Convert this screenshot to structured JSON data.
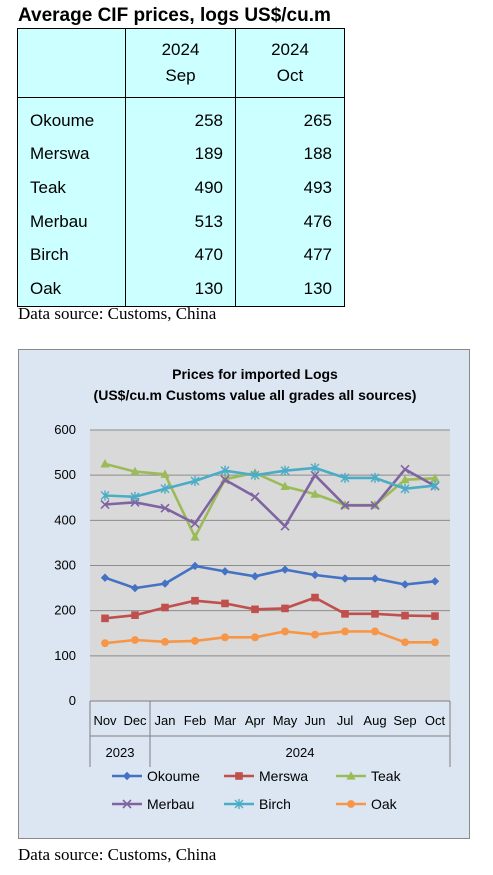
{
  "page_title": "Average CIF prices, logs US$/cu.m",
  "table": {
    "header": [
      {
        "year": "2024",
        "month": "Sep"
      },
      {
        "year": "2024",
        "month": "Oct"
      }
    ],
    "rows": [
      {
        "name": "Okoume",
        "sep": "258",
        "oct": "265"
      },
      {
        "name": "Merswa",
        "sep": "189",
        "oct": "188"
      },
      {
        "name": "Teak",
        "sep": "490",
        "oct": "493"
      },
      {
        "name": "Merbau",
        "sep": "513",
        "oct": "476"
      },
      {
        "name": "Birch",
        "sep": "470",
        "oct": "477"
      },
      {
        "name": "Oak",
        "sep": "130",
        "oct": "130"
      }
    ]
  },
  "source_top": "Data source: Customs, China",
  "source_bottom": "Data source: Customs, China",
  "chart_data": {
    "type": "line",
    "title": "Prices for imported Logs",
    "subtitle": "(US$/cu.m Customs value all grades all sources)",
    "categories": [
      "Nov",
      "Dec",
      "Jan",
      "Feb",
      "Mar",
      "Apr",
      "May",
      "Jun",
      "Jul",
      "Aug",
      "Sep",
      "Oct"
    ],
    "year_groups": [
      {
        "label": "2023",
        "count": 2
      },
      {
        "label": "2024",
        "count": 10
      }
    ],
    "ylim": [
      0,
      600
    ],
    "yticks": [
      0,
      100,
      200,
      300,
      400,
      500,
      600
    ],
    "grid": true,
    "legend_position": "bottom",
    "series": [
      {
        "name": "Okoume",
        "color": "#4472c4",
        "marker": "diamond",
        "values": [
          273,
          250,
          260,
          299,
          287,
          276,
          291,
          279,
          271,
          271,
          258,
          265
        ]
      },
      {
        "name": "Merswa",
        "color": "#c0504d",
        "marker": "square",
        "values": [
          183,
          190,
          207,
          222,
          216,
          203,
          205,
          229,
          193,
          193,
          189,
          188
        ]
      },
      {
        "name": "Teak",
        "color": "#9bbb59",
        "marker": "triangle",
        "values": [
          525,
          508,
          502,
          363,
          491,
          505,
          475,
          458,
          434,
          434,
          490,
          493
        ]
      },
      {
        "name": "Merbau",
        "color": "#8064a2",
        "marker": "x",
        "values": [
          435,
          440,
          427,
          393,
          490,
          452,
          387,
          500,
          433,
          433,
          513,
          476
        ]
      },
      {
        "name": "Birch",
        "color": "#4bacc6",
        "marker": "asterisk",
        "values": [
          455,
          452,
          470,
          487,
          510,
          500,
          510,
          516,
          494,
          494,
          470,
          477
        ]
      },
      {
        "name": "Oak",
        "color": "#f79646",
        "marker": "circle",
        "values": [
          128,
          135,
          131,
          133,
          141,
          141,
          154,
          147,
          154,
          154,
          130,
          130
        ]
      }
    ]
  }
}
